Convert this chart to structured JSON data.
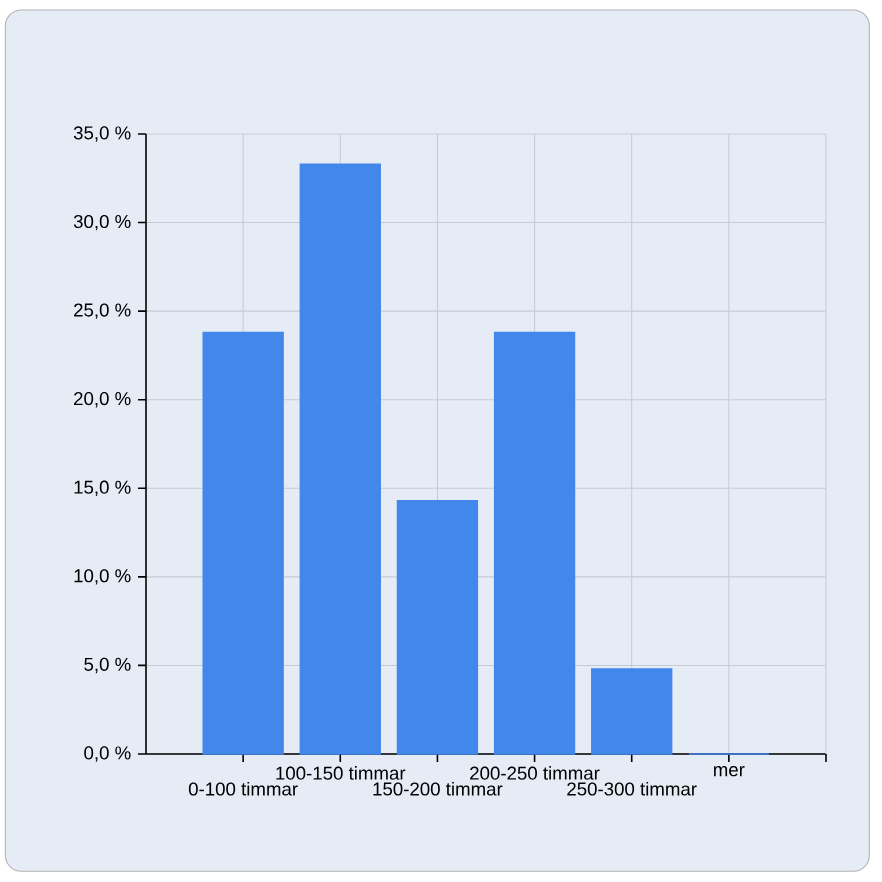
{
  "chart_data": {
    "type": "bar",
    "categories": [
      "0-100 timmar",
      "100-150 timmar",
      "150-200 timmar",
      "200-250 timmar",
      "250-300 timmar",
      "mer"
    ],
    "values": [
      23.8,
      33.3,
      14.3,
      23.8,
      4.8,
      0
    ],
    "color": "#4287ea",
    "ylim": [
      0,
      35
    ],
    "yticks": [
      {
        "value": 0,
        "label": "0,0 %"
      },
      {
        "value": 5,
        "label": "5,0 %"
      },
      {
        "value": 10,
        "label": "10,0 %"
      },
      {
        "value": 15,
        "label": "15,0 %"
      },
      {
        "value": 20,
        "label": "20,0 %"
      },
      {
        "value": 25,
        "label": "25,0 %"
      },
      {
        "value": 30,
        "label": "30,0 %"
      },
      {
        "value": 35,
        "label": "35,0 %"
      }
    ],
    "grid": true
  }
}
